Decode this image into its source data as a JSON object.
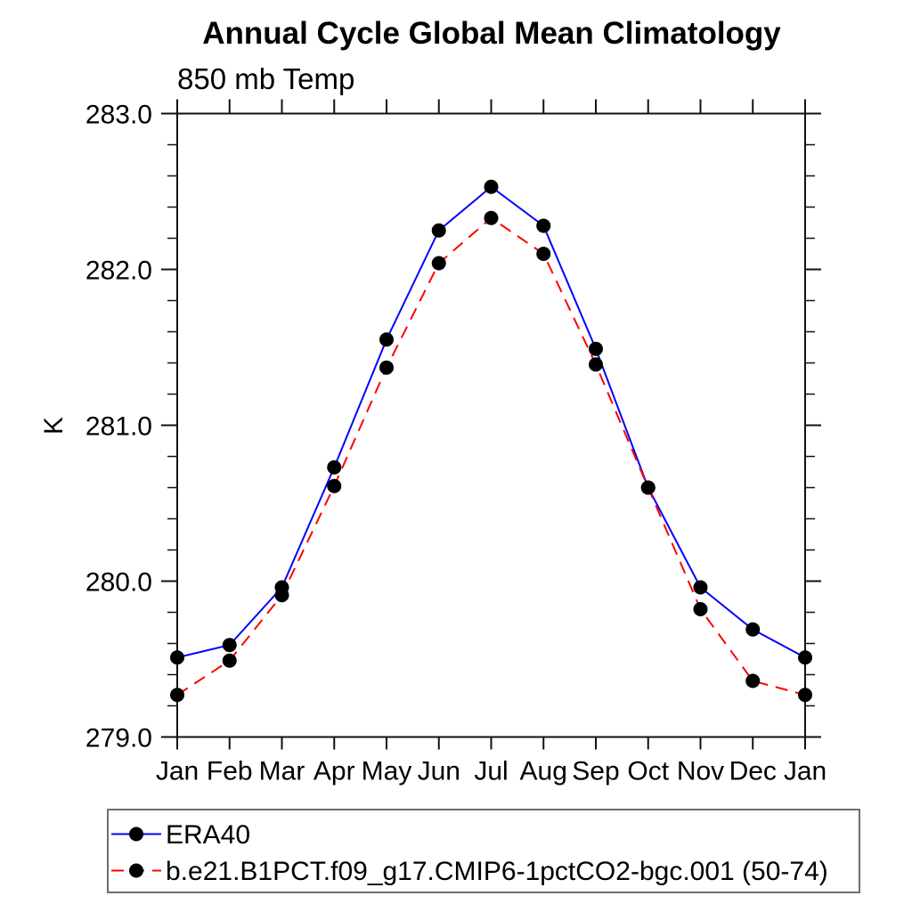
{
  "header": {
    "title": "Annual Cycle Global Mean Climatology",
    "subtitle": "850 mb Temp"
  },
  "chart_data": {
    "type": "line",
    "title": "Annual Cycle Global Mean Climatology",
    "subtitle": "850 mb Temp",
    "xlabel": "",
    "ylabel": "K",
    "x_categories": [
      "Jan",
      "Feb",
      "Mar",
      "Apr",
      "May",
      "Jun",
      "Jul",
      "Aug",
      "Sep",
      "Oct",
      "Nov",
      "Dec",
      "Jan"
    ],
    "ylim": [
      279.0,
      283.0
    ],
    "y_tick_labels": [
      "283.0",
      "282.0",
      "281.0",
      "280.0",
      "279.0"
    ],
    "y_major_ticks": [
      283.0,
      282.0,
      281.0,
      280.0,
      279.0
    ],
    "y_minor_step": 0.2,
    "grid": false,
    "legend_position": "bottom-left-box",
    "marker": "filled-circle",
    "marker_color": "#000000",
    "axis_color": "#111111",
    "series": [
      {
        "name": "ERA40",
        "color": "#0000ff",
        "line_style": "solid",
        "values": [
          279.51,
          279.59,
          279.96,
          280.73,
          281.55,
          282.25,
          282.53,
          282.28,
          281.49,
          280.6,
          279.96,
          279.69,
          279.51
        ]
      },
      {
        "name": "b.e21.B1PCT.f09_g17.CMIP6-1pctCO2-bgc.001 (50-74)",
        "color": "#ff0000",
        "line_style": "dashed",
        "values": [
          279.27,
          279.49,
          279.91,
          280.61,
          281.37,
          282.04,
          282.33,
          282.1,
          281.39,
          280.6,
          279.82,
          279.36,
          279.27
        ]
      }
    ]
  }
}
